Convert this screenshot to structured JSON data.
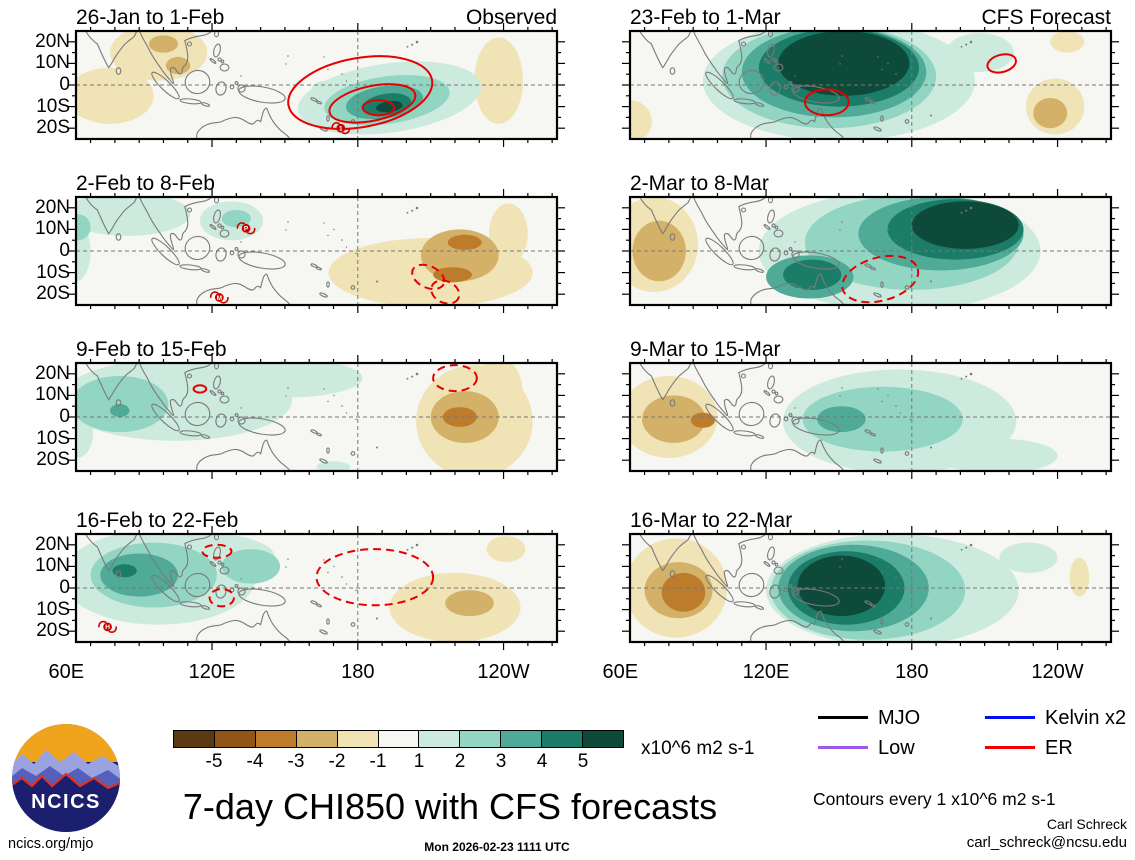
{
  "palette": {
    "levels": {
      "-5": "#5c3a11",
      "-4": "#8f5713",
      "-3": "#bc7c2c",
      "-2": "#d4b168",
      "-1": "#f0e3b6",
      "0": "#f6f6f3",
      "1": "#cceade",
      "2": "#93d5c3",
      "3": "#4fab97",
      "4": "#1b7c68",
      "5": "#0d4a3a"
    },
    "contour_red": "#e60000",
    "grid_gray": "#777777",
    "coast_gray": "#7a7a7a",
    "cyclone_red": "#d40000"
  },
  "chart_data": {
    "type": "filled_contour_map_grid",
    "description": "Eight lon-lat map panels of 7-day mean CHI850 (850 hPa velocity potential) anomalies; left column observed weeks, right column CFS forecast weeks. Shading every 1 x10^6 m2 s-1; red ovals are ER-wave contours (solid negative / dashed positive); anomalies listed as [lon, lat, radius_lon_deg, radius_lat_deg, level, rotation_deg].",
    "lon_range": [
      64,
      262
    ],
    "lat_range": [
      -25,
      25
    ],
    "axes": {
      "lon_tick_labels": [
        "60E",
        "120E",
        "180",
        "120W"
      ],
      "lon_tick_values": [
        60,
        120,
        180,
        240
      ],
      "lat_tick_labels": [
        "20N",
        "10N",
        "0",
        "10S",
        "20S"
      ],
      "lat_tick_values": [
        20,
        10,
        0,
        -10,
        -20
      ]
    },
    "panels": [
      {
        "title": "26-Jan to 1-Feb",
        "tag": "Observed",
        "row": 0,
        "col": 0,
        "anomalies": [
          [
            78,
            -5,
            18,
            13,
            -1,
            0
          ],
          [
            98,
            15,
            20,
            13,
            -1,
            0
          ],
          [
            238,
            2,
            10,
            20,
            -1,
            0
          ],
          [
            100,
            19,
            6,
            4,
            -2,
            0
          ],
          [
            106,
            9,
            5,
            4,
            -2,
            0
          ],
          [
            193,
            -6,
            38,
            16,
            1,
            -8
          ],
          [
            192,
            -7,
            26,
            11,
            2,
            -8
          ],
          [
            191,
            -8,
            16,
            7.5,
            3,
            -8
          ],
          [
            192,
            -9,
            10,
            5,
            4,
            -8
          ],
          [
            193,
            -10,
            5.5,
            2.5,
            5,
            -8
          ],
          [
            167,
            -2,
            6,
            4,
            1,
            0
          ]
        ],
        "contours": [
          [
            181,
            -3.5,
            30,
            16,
            -10,
            0
          ],
          [
            186,
            -8.5,
            18,
            8,
            -12,
            0
          ],
          [
            188.5,
            -10.5,
            6.5,
            3.5,
            0,
            0
          ]
        ],
        "cyclones": [
          [
            173,
            -20,
            "1"
          ]
        ]
      },
      {
        "title": "23-Feb to 1-Mar",
        "tag": "CFS Forecast",
        "row": 0,
        "col": 1,
        "anomalies": [
          [
            64,
            -17,
            9,
            10,
            -1,
            0
          ],
          [
            239,
            -10,
            12,
            13,
            -1,
            0
          ],
          [
            237,
            -13,
            7,
            7,
            -2,
            0
          ],
          [
            244,
            20,
            7,
            5,
            -1,
            0
          ],
          [
            150,
            2,
            56,
            28,
            1,
            0
          ],
          [
            146,
            4,
            44,
            24,
            2,
            0
          ],
          [
            148,
            6,
            38,
            21,
            3,
            0
          ],
          [
            150,
            8,
            33,
            18,
            4,
            0
          ],
          [
            152,
            10,
            27,
            15,
            5,
            0
          ],
          [
            208,
            15,
            14,
            9,
            1,
            0
          ]
        ],
        "contours": [
          [
            145,
            -8,
            9,
            6,
            0,
            0
          ],
          [
            217,
            10,
            6,
            4,
            -15,
            0
          ]
        ],
        "cyclones": []
      },
      {
        "title": "2-Feb to 8-Feb",
        "tag": "",
        "row": 1,
        "col": 0,
        "anomalies": [
          [
            85,
            17,
            26,
            10,
            1,
            0
          ],
          [
            64,
            0,
            6,
            14,
            1,
            0
          ],
          [
            128,
            14,
            13,
            9,
            1,
            0
          ],
          [
            65,
            11,
            5,
            6,
            2,
            0
          ],
          [
            130,
            15,
            6,
            4,
            2,
            0
          ],
          [
            210,
            -10,
            42,
            16,
            -1,
            0
          ],
          [
            242,
            8,
            8,
            14,
            -1,
            0
          ],
          [
            222,
            -2,
            16,
            12,
            -2,
            0
          ],
          [
            224,
            4,
            7,
            3.5,
            -3,
            0
          ],
          [
            219,
            -11,
            8,
            3.5,
            -3,
            0
          ]
        ],
        "contours": [
          [
            209,
            -12,
            7,
            5,
            25,
            1
          ],
          [
            216,
            -19,
            6,
            5,
            25,
            1
          ]
        ],
        "cyclones": [
          [
            134,
            10.5,
            "P"
          ],
          [
            123,
            -21.5,
            "M"
          ]
        ]
      },
      {
        "title": "2-Mar to 8-Mar",
        "tag": "",
        "row": 1,
        "col": 1,
        "anomalies": [
          [
            74,
            3,
            18,
            22,
            -1,
            0
          ],
          [
            76,
            0,
            11,
            14,
            -2,
            0
          ],
          [
            175,
            0,
            58,
            28,
            1,
            0
          ],
          [
            180,
            4,
            44,
            22,
            2,
            0
          ],
          [
            192,
            8,
            34,
            17,
            3,
            0
          ],
          [
            198,
            10,
            28,
            14,
            4,
            0
          ],
          [
            202,
            12,
            22,
            11,
            5,
            0
          ],
          [
            138,
            -12,
            18,
            10,
            3,
            0
          ],
          [
            139,
            -11,
            12,
            7,
            4,
            0
          ]
        ],
        "contours": [
          [
            167,
            -13,
            16,
            10,
            -15,
            1
          ]
        ],
        "cyclones": []
      },
      {
        "title": "9-Feb to 15-Feb",
        "tag": "",
        "row": 2,
        "col": 0,
        "anomalies": [
          [
            105,
            8,
            48,
            19,
            1,
            0
          ],
          [
            150,
            18,
            32,
            9,
            1,
            0
          ],
          [
            64,
            -8,
            7,
            11,
            1,
            0
          ],
          [
            170,
            -23,
            7,
            2.5,
            1,
            0
          ],
          [
            82,
            6,
            20,
            13,
            2,
            0
          ],
          [
            82,
            3,
            4,
            3,
            3,
            0
          ],
          [
            228,
            -2,
            24,
            26,
            -1,
            0
          ],
          [
            238,
            10,
            10,
            18,
            -1,
            0
          ],
          [
            224,
            0,
            14,
            12,
            -2,
            0
          ],
          [
            222,
            0,
            7,
            4.6,
            -3,
            0
          ]
        ],
        "contours": [
          [
            115,
            13,
            2.6,
            1.7,
            0,
            0
          ],
          [
            220,
            18,
            9,
            6,
            0,
            1
          ]
        ],
        "cyclones": []
      },
      {
        "title": "9-Mar to 15-Mar",
        "tag": "",
        "row": 2,
        "col": 1,
        "anomalies": [
          [
            80,
            0,
            20,
            19,
            -1,
            0
          ],
          [
            82,
            -1,
            13,
            11,
            -2,
            0
          ],
          [
            94,
            -1.5,
            5,
            3.5,
            -3,
            0
          ],
          [
            175,
            -2,
            48,
            24,
            1,
            0
          ],
          [
            215,
            -18,
            25,
            8,
            1,
            0
          ],
          [
            168,
            -1,
            33,
            15,
            2,
            0
          ],
          [
            151,
            -1,
            10,
            6,
            3,
            0
          ]
        ],
        "contours": [],
        "cyclones": []
      },
      {
        "title": "16-Feb to 22-Feb",
        "tag": "",
        "row": 3,
        "col": 0,
        "anomalies": [
          [
            98,
            5,
            40,
            22,
            1,
            0
          ],
          [
            120,
            14,
            26,
            11,
            1,
            0
          ],
          [
            96,
            6,
            26,
            15,
            2,
            0
          ],
          [
            136,
            10,
            12,
            8,
            2,
            0
          ],
          [
            90,
            6,
            16,
            10,
            3,
            0
          ],
          [
            84,
            8,
            5,
            3,
            4,
            0
          ],
          [
            220,
            -9,
            27,
            16,
            -1,
            0
          ],
          [
            241,
            18,
            8,
            6,
            -1,
            0
          ],
          [
            226,
            -7,
            10,
            6,
            -2,
            0
          ]
        ],
        "contours": [
          [
            122,
            17,
            6,
            3,
            0,
            1
          ],
          [
            124,
            -4.5,
            5,
            4,
            0,
            1
          ],
          [
            187,
            5,
            24,
            13,
            0,
            1
          ]
        ],
        "cyclones": [
          [
            77,
            -18,
            "H"
          ]
        ]
      },
      {
        "title": "16-Mar to 22-Mar",
        "tag": "",
        "row": 3,
        "col": 1,
        "anomalies": [
          [
            83,
            0,
            21,
            23,
            -1,
            0
          ],
          [
            84,
            -1,
            14,
            13,
            -2,
            0
          ],
          [
            86,
            -2,
            9,
            9,
            -3,
            0
          ],
          [
            172,
            -1,
            52,
            26,
            1,
            0
          ],
          [
            162,
            -1,
            40,
            23,
            2,
            0
          ],
          [
            156,
            0,
            31,
            20,
            3,
            0
          ],
          [
            153,
            0,
            24,
            17,
            4,
            0
          ],
          [
            151,
            1,
            18,
            14,
            5,
            0
          ],
          [
            228,
            14,
            12,
            7,
            1,
            0
          ],
          [
            249,
            5,
            4,
            9,
            -1,
            0
          ]
        ],
        "contours": [],
        "cyclones": []
      }
    ]
  },
  "colorbar": {
    "tick_labels": [
      "-5",
      "-4",
      "-3",
      "-2",
      "-1",
      "1",
      "2",
      "3",
      "4",
      "5"
    ],
    "units": "x10^6 m2 s-1"
  },
  "legend": {
    "items": [
      {
        "label": "MJO",
        "color": "#000000"
      },
      {
        "label": "Kelvin x2",
        "color": "#0010f0"
      },
      {
        "label": "Low",
        "color": "#9b59f0"
      },
      {
        "label": "ER",
        "color": "#f00000"
      }
    ]
  },
  "footer": {
    "title": "7-day CHI850 with CFS forecasts",
    "timestamp": "Mon 2026-02-23 1111 UTC",
    "contour_note": "Contours every 1 x10^6 m2 s-1",
    "credit_name": "Carl Schreck",
    "credit_email": "carl_schreck@ncsu.edu",
    "site": "ncics.org/mjo",
    "logo": {
      "text": "NCICS",
      "navy": "#1c1e6e",
      "gold": "#f0a41e",
      "ridge_red": "#e03224",
      "mtn_light": "#9aa3e0",
      "mtn_mid": "#5560bd"
    }
  }
}
